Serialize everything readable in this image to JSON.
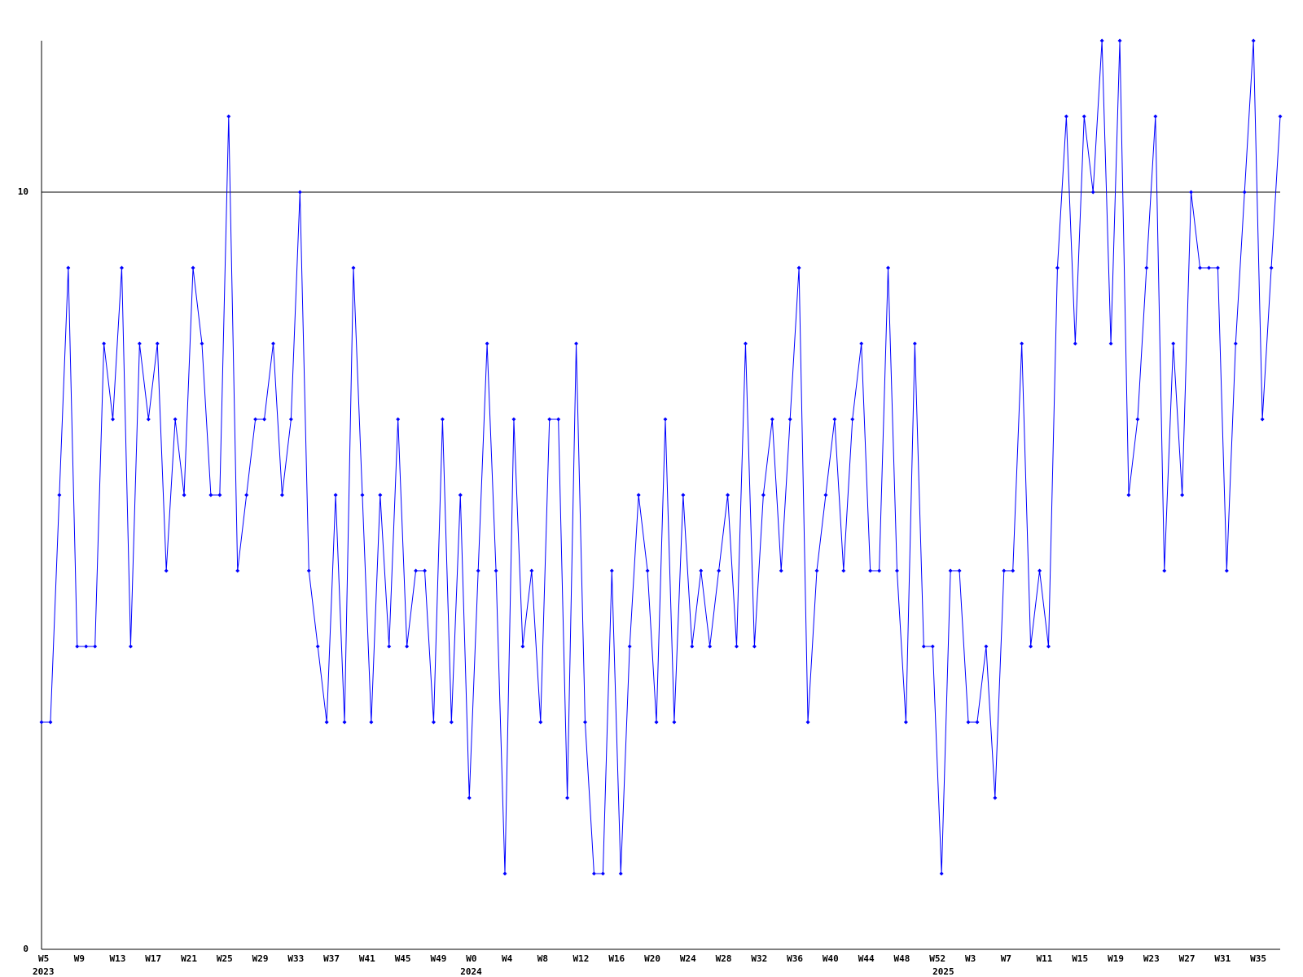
{
  "chart_data": {
    "type": "line",
    "categories": [
      "W5",
      null,
      null,
      null,
      "W9",
      null,
      null,
      null,
      "W13",
      null,
      null,
      null,
      "W17",
      null,
      null,
      null,
      "W21",
      null,
      null,
      null,
      "W25",
      null,
      null,
      null,
      "W29",
      null,
      null,
      null,
      "W33",
      null,
      null,
      null,
      "W37",
      null,
      null,
      null,
      "W41",
      null,
      null,
      null,
      "W45",
      null,
      null,
      null,
      "W49",
      null,
      null,
      null,
      "W0",
      null,
      null,
      null,
      "W4",
      null,
      null,
      null,
      "W8",
      null,
      null,
      null,
      "W12",
      null,
      null,
      null,
      "W16",
      null,
      null,
      null,
      "W20",
      null,
      null,
      null,
      "W24",
      null,
      null,
      null,
      "W28",
      null,
      null,
      null,
      "W32",
      null,
      null,
      null,
      "W36",
      null,
      null,
      null,
      "W40",
      null,
      null,
      null,
      "W44",
      null,
      null,
      null,
      "W48",
      null,
      null,
      null,
      "W52",
      null,
      null,
      null,
      "W3",
      null,
      null,
      null,
      "W7",
      null,
      null,
      null,
      "W11",
      null,
      null,
      null,
      "W15",
      null,
      null,
      null,
      "W19",
      null,
      null,
      null,
      "W23",
      null,
      null,
      null,
      "W27",
      null,
      null,
      null,
      "W31",
      null,
      null,
      null,
      "W35",
      null,
      null,
      null
    ],
    "category_years": [
      "2023",
      null,
      null,
      null,
      null,
      null,
      null,
      null,
      null,
      null,
      null,
      null,
      null,
      null,
      null,
      null,
      null,
      null,
      null,
      null,
      null,
      null,
      null,
      null,
      null,
      null,
      null,
      null,
      null,
      null,
      null,
      null,
      null,
      null,
      null,
      null,
      null,
      null,
      null,
      null,
      null,
      null,
      null,
      null,
      null,
      null,
      null,
      null,
      "2024",
      null,
      null,
      null,
      null,
      null,
      null,
      null,
      null,
      null,
      null,
      null,
      null,
      null,
      null,
      null,
      null,
      null,
      null,
      null,
      null,
      null,
      null,
      null,
      null,
      null,
      null,
      null,
      null,
      null,
      null,
      null,
      null,
      null,
      null,
      null,
      null,
      null,
      null,
      null,
      null,
      null,
      null,
      null,
      null,
      null,
      null,
      null,
      null,
      null,
      null,
      null,
      null,
      "2025",
      null,
      null,
      null,
      null,
      null,
      null,
      null,
      null,
      null,
      null,
      null,
      null,
      null,
      null,
      null,
      null,
      null,
      null,
      null,
      null,
      null,
      null,
      null,
      null,
      null,
      null,
      null,
      null,
      null,
      null,
      null,
      null,
      null,
      null,
      null,
      null,
      null,
      null
    ],
    "series": [
      {
        "color": "#0000ff",
        "values": [
          3,
          3,
          6,
          9,
          4,
          4,
          4,
          8,
          7,
          9,
          4,
          8,
          7,
          8,
          5,
          7,
          6,
          9,
          8,
          6,
          6,
          11,
          5,
          6,
          7,
          7,
          8,
          6,
          7,
          10,
          5,
          4,
          3,
          6,
          3,
          9,
          6,
          3,
          6,
          4,
          7,
          4,
          5,
          5,
          3,
          7,
          3,
          6,
          2,
          5,
          8,
          5,
          1,
          7,
          4,
          5,
          3,
          7,
          7,
          2,
          8,
          3,
          1,
          1,
          5,
          1,
          4,
          6,
          5,
          3,
          7,
          3,
          6,
          4,
          5,
          4,
          5,
          6,
          4,
          8,
          4,
          6,
          7,
          5,
          7,
          9,
          3,
          5,
          6,
          7,
          5,
          7,
          8,
          5,
          5,
          9,
          5,
          3,
          8,
          4,
          4,
          1,
          5,
          5,
          3,
          3,
          4,
          2,
          5,
          5,
          8,
          4,
          5,
          4,
          9,
          11,
          8,
          11,
          10,
          12,
          8,
          12,
          6,
          7,
          9,
          11,
          5,
          8,
          6,
          10,
          9,
          9,
          9,
          5,
          8,
          10,
          12,
          7,
          9,
          11
        ]
      }
    ],
    "ylim": [
      0,
      12
    ],
    "yticks": [
      0,
      10
    ],
    "grid": true
  }
}
